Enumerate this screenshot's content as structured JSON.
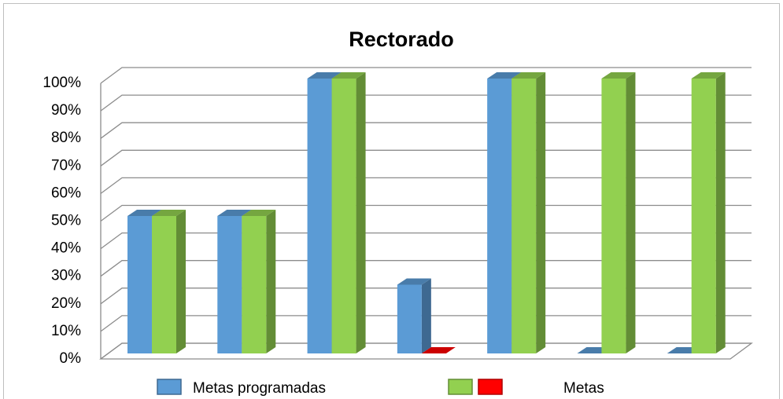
{
  "chart_data": {
    "type": "bar3d",
    "title": "Rectorado",
    "categories": [
      null,
      null,
      null,
      null,
      null,
      null,
      null
    ],
    "series": [
      {
        "name": "Metas programadas",
        "color": "#5b9bd5",
        "values": [
          50,
          50,
          100,
          25,
          100,
          0,
          0
        ]
      },
      {
        "name": "Metas",
        "color": "#92d050",
        "colors": [
          "#92d050",
          "#92d050",
          "#92d050",
          "#ff0000",
          "#92d050",
          "#92d050",
          "#92d050"
        ],
        "values": [
          50,
          50,
          100,
          0,
          100,
          100,
          100
        ]
      }
    ],
    "ylim": [
      0,
      100
    ],
    "yticks": [
      {
        "value": 0,
        "label": "0%"
      },
      {
        "value": 10,
        "label": "10%"
      },
      {
        "value": 20,
        "label": "20%"
      },
      {
        "value": 30,
        "label": "30%"
      },
      {
        "value": 40,
        "label": "40%"
      },
      {
        "value": 50,
        "label": "50%"
      },
      {
        "value": 60,
        "label": "60%"
      },
      {
        "value": 70,
        "label": "70%"
      },
      {
        "value": 80,
        "label": "80%"
      },
      {
        "value": 90,
        "label": "90%"
      },
      {
        "value": 100,
        "label": "100%"
      }
    ],
    "grid": true,
    "legend": "bottom"
  }
}
